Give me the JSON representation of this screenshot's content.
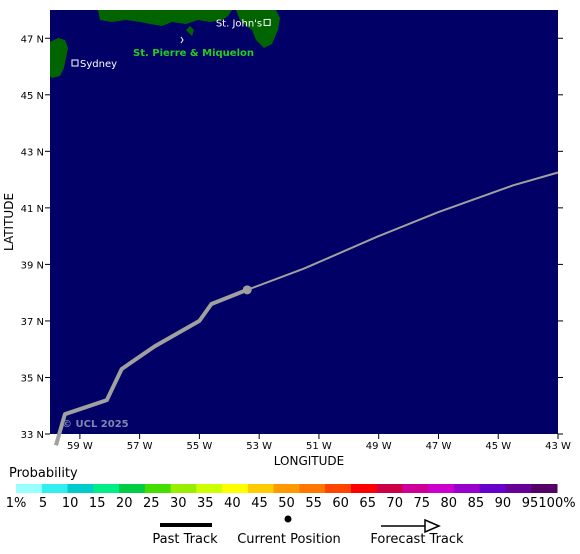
{
  "map": {
    "background_color": "#000066",
    "land_color": "#006400",
    "track_color": "#a0a0a0",
    "lon_range": [
      -60,
      -43
    ],
    "lat_range": [
      33,
      48
    ],
    "lon_ticks": [
      "59 W",
      "57 W",
      "55 W",
      "53 W",
      "51 W",
      "49 W",
      "47 W",
      "45 W",
      "43 W"
    ],
    "lat_ticks": [
      "47 N",
      "45 N",
      "43 N",
      "41 N",
      "39 N",
      "37 N",
      "35 N",
      "33 N"
    ],
    "xlabel": "LONGITUDE",
    "ylabel": "LATITUDE",
    "places": [
      {
        "name": "St. John's",
        "lon": -52.7,
        "lat": 47.56
      },
      {
        "name": "Sydney",
        "lon": -60.2,
        "lat": 46.14
      }
    ],
    "region_label": "St. Pierre & Miquelon",
    "credit": "© UCL 2025",
    "current_position": {
      "lon": -53.4,
      "lat": 38.1
    },
    "past_track": [
      {
        "lon": -59.8,
        "lat": 32.6
      },
      {
        "lon": -59.5,
        "lat": 33.7
      },
      {
        "lon": -58.1,
        "lat": 34.2
      },
      {
        "lon": -57.6,
        "lat": 35.3
      },
      {
        "lon": -56.5,
        "lat": 36.1
      },
      {
        "lon": -55.0,
        "lat": 37.0
      },
      {
        "lon": -54.6,
        "lat": 37.6
      },
      {
        "lon": -53.4,
        "lat": 38.1
      }
    ],
    "forecast_track": [
      {
        "lon": -53.4,
        "lat": 38.1
      },
      {
        "lon": -51.5,
        "lat": 38.85
      },
      {
        "lon": -49.0,
        "lat": 40.0
      },
      {
        "lon": -47.0,
        "lat": 40.85
      },
      {
        "lon": -44.5,
        "lat": 41.8
      },
      {
        "lon": -43.0,
        "lat": 42.25
      }
    ]
  },
  "legend": {
    "probability_title": "Probability",
    "scale_labels": [
      "1%",
      "5",
      "10",
      "15",
      "20",
      "25",
      "30",
      "35",
      "40",
      "45",
      "50",
      "55",
      "60",
      "65",
      "70",
      "75",
      "80",
      "85",
      "90",
      "95",
      "100%"
    ],
    "scale_colors": [
      "#99ffff",
      "#33eeee",
      "#00cccc",
      "#00ee88",
      "#00cc44",
      "#44dd00",
      "#99ee00",
      "#ccff00",
      "#ffff00",
      "#ffcc00",
      "#ff9900",
      "#ff7700",
      "#ff4400",
      "#ff0000",
      "#cc0044",
      "#cc0099",
      "#cc00cc",
      "#9900cc",
      "#6600cc",
      "#660099",
      "#550066"
    ],
    "past_track_label": "Past Track",
    "current_position_label": "Current Position",
    "forecast_track_label": "Forecast Track"
  }
}
